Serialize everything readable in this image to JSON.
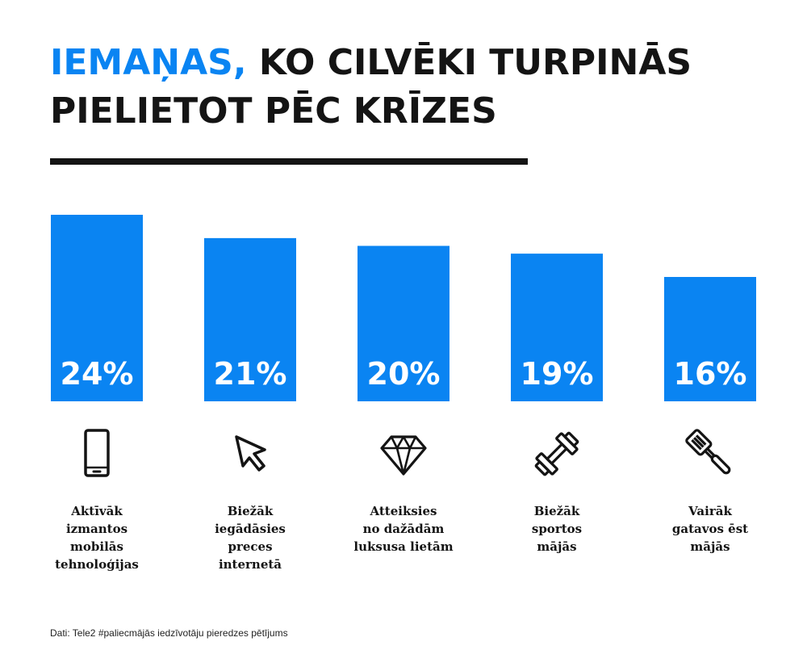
{
  "title": {
    "accent": "IEMAŅAS,",
    "line1_rest": "KO CILVĒKI TURPINĀS",
    "line2": "PIELIETOT PĒC KRĪZES"
  },
  "colors": {
    "accent": "#0a84f2",
    "text": "#141414"
  },
  "chart_data": {
    "type": "bar",
    "categories": [
      "Aktīvāk izmantos mobilās tehnoloģijas",
      "Biežāk iegādāsies preces internetā",
      "Atteiksies no dažādām luksusa lietām",
      "Biežāk sportos mājās",
      "Vairāk gatavos ēst mājās"
    ],
    "values": [
      24,
      21,
      20,
      19,
      16
    ],
    "value_labels": [
      "24%",
      "21%",
      "20%",
      "19%",
      "16%"
    ],
    "unit": "%",
    "color": "#0a84f2",
    "grid": false,
    "legend": "none"
  },
  "items": [
    {
      "icon": "smartphone-icon",
      "label_lines": [
        "Aktīvāk",
        "izmantos",
        "mobilās",
        "tehnoloģijas"
      ]
    },
    {
      "icon": "cursor-icon",
      "label_lines": [
        "Biežāk",
        "iegādāsies",
        "preces",
        "internetā"
      ]
    },
    {
      "icon": "diamond-icon",
      "label_lines": [
        "Atteiksies",
        "no dažādām",
        "luksusa lietām"
      ]
    },
    {
      "icon": "dumbbell-icon",
      "label_lines": [
        "Biežāk",
        "sportos",
        "mājās"
      ]
    },
    {
      "icon": "spatula-icon",
      "label_lines": [
        "Vairāk",
        "gatavos ēst",
        "mājās"
      ]
    }
  ],
  "source": "Dati: Tele2 #paliecmājās iedzīvotāju pieredzes pētījums"
}
